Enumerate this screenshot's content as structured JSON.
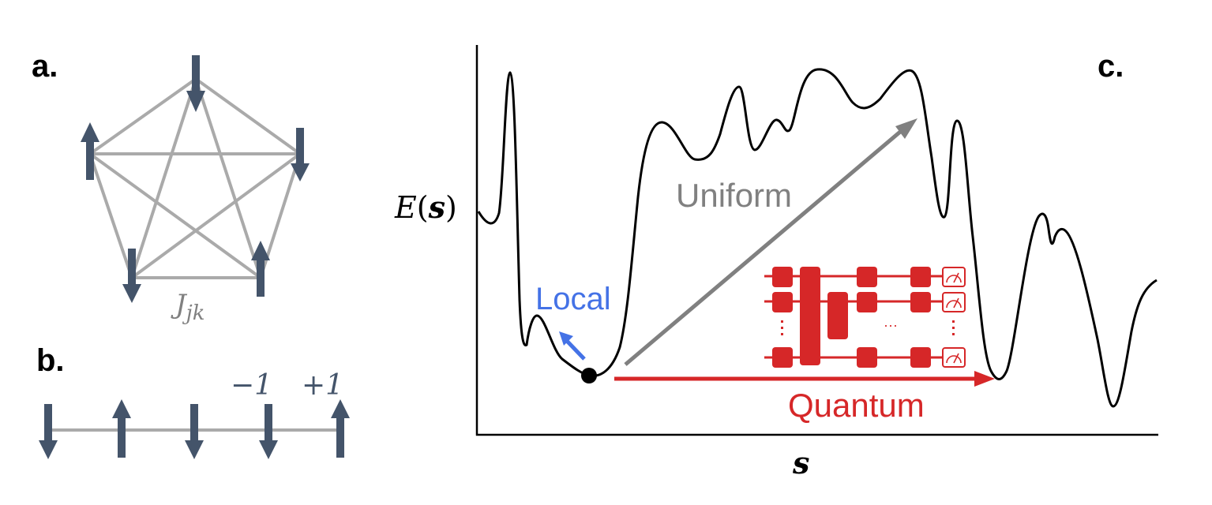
{
  "panel_a": {
    "label": "a.",
    "coupling_label_main": "J",
    "coupling_label_sub": "jk",
    "spins": [
      "down",
      "down",
      "down",
      "up",
      "up"
    ],
    "edge_color": "#aaaaaa",
    "spin_color": "#44546a"
  },
  "panel_b": {
    "label": "b.",
    "spins": [
      "down",
      "up",
      "down",
      "down",
      "up"
    ],
    "value_down": "−1",
    "value_up": "+1"
  },
  "panel_c": {
    "label": "c.",
    "ylabel_E": "E",
    "ylabel_paren_open": "(",
    "ylabel_s": "s",
    "ylabel_paren_close": ")",
    "xlabel": "s",
    "local_label": "Local",
    "uniform_label": "Uniform",
    "quantum_label": "Quantum",
    "circuit_ellipsis": "···",
    "colors": {
      "curve": "#000000",
      "local": "#4472e6",
      "uniform": "#808080",
      "quantum": "#d62728"
    }
  }
}
